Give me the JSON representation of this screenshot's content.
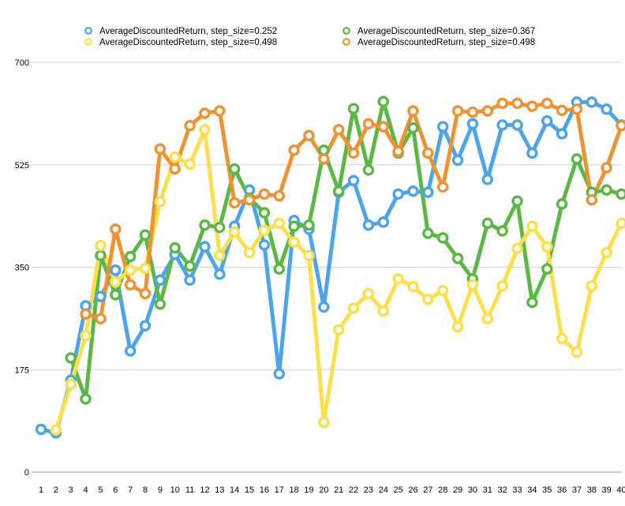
{
  "chart_data": {
    "type": "line",
    "categories": [
      "1",
      "2",
      "3",
      "4",
      "5",
      "6",
      "7",
      "8",
      "9",
      "10",
      "11",
      "12",
      "13",
      "14",
      "15",
      "16",
      "17",
      "18",
      "19",
      "20",
      "21",
      "22",
      "23",
      "24",
      "25",
      "26",
      "27",
      "28",
      "29",
      "30",
      "31",
      "32",
      "33",
      "34",
      "35",
      "36",
      "37",
      "38",
      "39",
      "40"
    ],
    "y_ticks": [
      "0",
      "175",
      "350",
      "525",
      "700"
    ],
    "ylim": [
      0,
      700
    ],
    "grid": true,
    "legend_position": "top",
    "series": [
      {
        "name": "AverageDiscountedReturn, step_size=0.252",
        "color": "#4ea4e8",
        "values": [
          73,
          67,
          157,
          284,
          300,
          345,
          207,
          250,
          328,
          372,
          328,
          385,
          338,
          420,
          482,
          388,
          168,
          430,
          415,
          282,
          478,
          498,
          422,
          427,
          475,
          480,
          478,
          590,
          533,
          595,
          500,
          593,
          593,
          545,
          600,
          578,
          632,
          632,
          620,
          593
        ]
      },
      {
        "name": "AverageDiscountedReturn, step_size=0.367",
        "color": "#5cb846",
        "values": [
          null,
          null,
          195,
          125,
          370,
          303,
          368,
          405,
          287,
          383,
          352,
          422,
          418,
          518,
          468,
          443,
          347,
          420,
          422,
          550,
          480,
          621,
          516,
          633,
          545,
          588,
          408,
          400,
          365,
          330,
          425,
          412,
          463,
          290,
          347,
          458,
          535,
          478,
          482,
          475
        ]
      },
      {
        "name": "AverageDiscountedReturn, step_size=0.498",
        "color": "#fbdf4b",
        "values": [
          null,
          72,
          150,
          233,
          387,
          325,
          345,
          348,
          462,
          538,
          526,
          585,
          370,
          410,
          375,
          413,
          425,
          393,
          370,
          85,
          243,
          280,
          305,
          275,
          330,
          317,
          295,
          310,
          248,
          320,
          262,
          318,
          382,
          420,
          385,
          228,
          205,
          318,
          375,
          425
        ]
      },
      {
        "name": "AverageDiscountedReturn, step_size=0.498",
        "color": "#ee9333",
        "values": [
          null,
          null,
          null,
          270,
          262,
          415,
          320,
          305,
          552,
          518,
          592,
          613,
          617,
          460,
          465,
          475,
          472,
          550,
          575,
          535,
          585,
          545,
          595,
          590,
          548,
          617,
          545,
          487,
          617,
          615,
          617,
          630,
          630,
          625,
          630,
          618,
          620,
          465,
          520,
          592
        ]
      }
    ]
  }
}
